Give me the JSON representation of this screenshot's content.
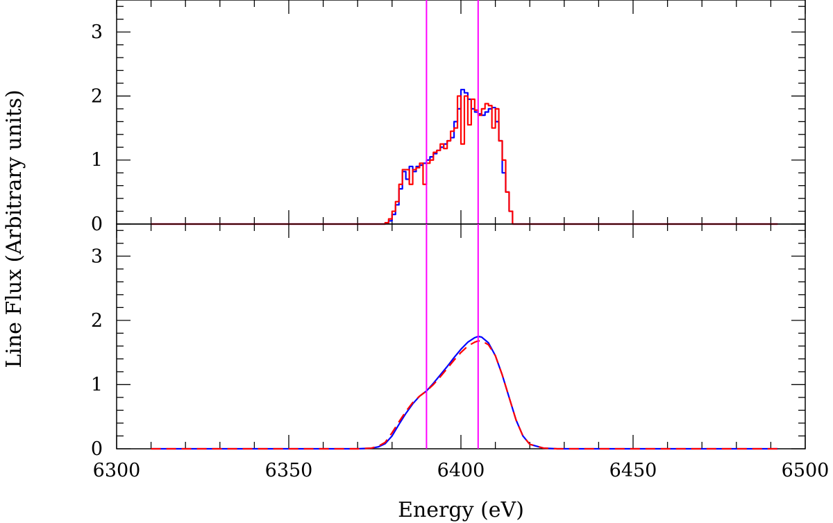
{
  "chart_data": [
    {
      "panel": "top",
      "type": "line",
      "style": "step",
      "xlim": [
        6300,
        6500
      ],
      "ylim": [
        0,
        3.5
      ],
      "yticks": [
        "0",
        "1",
        "2",
        "3"
      ],
      "vlines": [
        6390,
        6405
      ],
      "vline_color": "#ff00ff",
      "series": [
        {
          "color": "#0000ff",
          "x": [
            6310,
            6378,
            6379,
            6380,
            6381,
            6382,
            6383,
            6384,
            6385,
            6386,
            6387,
            6388,
            6389,
            6390,
            6391,
            6392,
            6393,
            6394,
            6395,
            6396,
            6397,
            6398,
            6399,
            6400,
            6401,
            6402,
            6403,
            6404,
            6405,
            6406,
            6407,
            6408,
            6409,
            6410,
            6411,
            6412,
            6413,
            6414,
            6415,
            6416,
            6492
          ],
          "y": [
            0,
            0.02,
            0.05,
            0.15,
            0.3,
            0.55,
            0.82,
            0.7,
            0.9,
            0.82,
            0.9,
            0.92,
            0.95,
            1.0,
            1.05,
            1.1,
            1.15,
            1.2,
            1.25,
            1.3,
            1.35,
            1.6,
            1.8,
            2.1,
            2.05,
            1.95,
            1.8,
            1.75,
            1.72,
            1.7,
            1.75,
            1.8,
            1.82,
            1.6,
            1.3,
            0.8,
            0.5,
            0.2,
            0.0,
            0,
            0
          ]
        },
        {
          "color": "#ff0000",
          "x": [
            6310,
            6378,
            6379,
            6380,
            6381,
            6382,
            6383,
            6384,
            6385,
            6386,
            6387,
            6388,
            6389,
            6390,
            6391,
            6392,
            6393,
            6394,
            6395,
            6396,
            6397,
            6398,
            6399,
            6400,
            6401,
            6402,
            6403,
            6404,
            6405,
            6406,
            6407,
            6408,
            6409,
            6410,
            6411,
            6412,
            6413,
            6414,
            6415,
            6416,
            6492
          ],
          "y": [
            0,
            0.02,
            0.08,
            0.2,
            0.35,
            0.62,
            0.85,
            0.85,
            0.62,
            0.85,
            0.88,
            0.95,
            0.62,
            0.95,
            1.0,
            1.12,
            1.15,
            1.25,
            1.18,
            1.3,
            1.45,
            1.5,
            2.0,
            1.25,
            2.0,
            1.55,
            1.95,
            1.78,
            1.7,
            1.8,
            1.88,
            1.85,
            1.5,
            1.8,
            1.3,
            1.0,
            0.5,
            0.2,
            0.0,
            0,
            0
          ]
        }
      ]
    },
    {
      "panel": "bottom",
      "type": "line",
      "style": "smooth",
      "xlim": [
        6300,
        6500
      ],
      "ylim": [
        0,
        3.5
      ],
      "yticks": [
        "0",
        "1",
        "2",
        "3"
      ],
      "xticks": [
        "6300",
        "6350",
        "6400",
        "6450",
        "6500"
      ],
      "xlabel": "Energy (eV)",
      "ylabel": "Line Flux (Arbitrary units)",
      "vlines": [
        6390,
        6405
      ],
      "vline_color": "#ff00ff",
      "series": [
        {
          "color": "#0000ff",
          "dash": "solid",
          "x": [
            6310,
            6370,
            6374,
            6376,
            6378,
            6380,
            6382,
            6384,
            6386,
            6388,
            6390,
            6392,
            6394,
            6396,
            6398,
            6400,
            6402,
            6404,
            6405,
            6406,
            6408,
            6410,
            6412,
            6414,
            6416,
            6418,
            6420,
            6424,
            6428,
            6492
          ],
          "y": [
            0,
            0,
            0.01,
            0.03,
            0.08,
            0.2,
            0.38,
            0.55,
            0.7,
            0.82,
            0.9,
            1.02,
            1.15,
            1.28,
            1.42,
            1.55,
            1.66,
            1.73,
            1.75,
            1.74,
            1.65,
            1.45,
            1.15,
            0.8,
            0.45,
            0.2,
            0.07,
            0.01,
            0,
            0
          ]
        },
        {
          "color": "#ff0000",
          "dash": "dashed",
          "x": [
            6310,
            6370,
            6374,
            6376,
            6378,
            6380,
            6382,
            6384,
            6386,
            6388,
            6390,
            6392,
            6394,
            6396,
            6398,
            6400,
            6402,
            6404,
            6405,
            6406,
            6408,
            6410,
            6412,
            6414,
            6416,
            6418,
            6420,
            6424,
            6428,
            6492
          ],
          "y": [
            0,
            0,
            0.01,
            0.04,
            0.1,
            0.25,
            0.42,
            0.58,
            0.72,
            0.82,
            0.9,
            1.0,
            1.12,
            1.25,
            1.38,
            1.5,
            1.6,
            1.66,
            1.68,
            1.68,
            1.62,
            1.45,
            1.15,
            0.8,
            0.45,
            0.2,
            0.07,
            0.01,
            0,
            0
          ]
        }
      ]
    }
  ]
}
